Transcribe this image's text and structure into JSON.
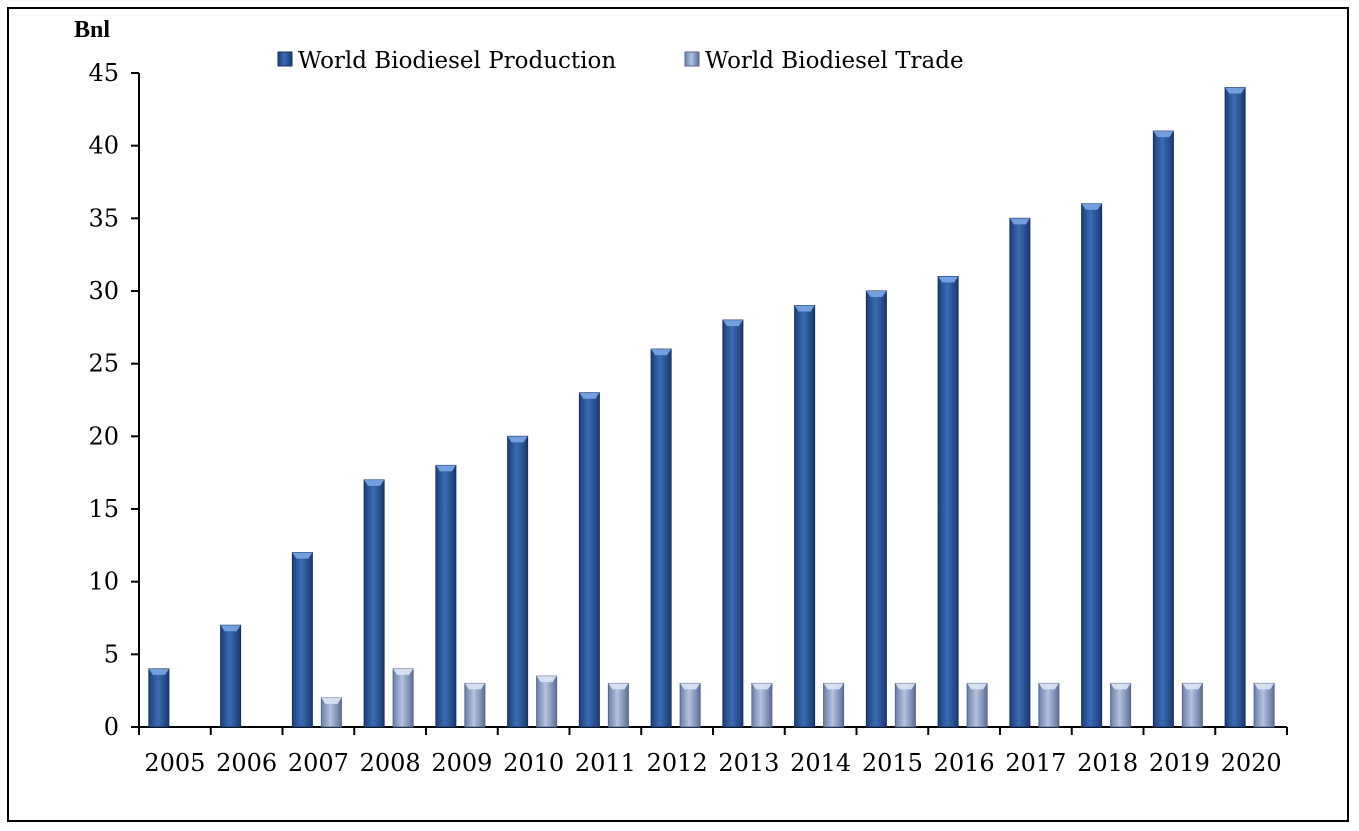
{
  "chart_data": {
    "type": "bar",
    "title": "",
    "xlabel": "",
    "ylabel": "Bnl",
    "ylim": [
      0,
      45
    ],
    "yticks": [
      0,
      5,
      10,
      15,
      20,
      25,
      30,
      35,
      40,
      45
    ],
    "categories": [
      "2005",
      "2006",
      "2007",
      "2008",
      "2009",
      "2010",
      "2011",
      "2012",
      "2013",
      "2014",
      "2015",
      "2016",
      "2017",
      "2018",
      "2019",
      "2020"
    ],
    "series": [
      {
        "name": "World Biodiesel Production",
        "color": "#2f5b9e",
        "values": [
          4,
          7,
          12,
          17,
          18,
          20,
          23,
          26,
          28,
          29,
          30,
          31,
          35,
          36,
          41,
          44
        ]
      },
      {
        "name": "World Biodiesel Trade",
        "color": "#8da2c8",
        "values": [
          0,
          0,
          2,
          4,
          3,
          3.5,
          3,
          3,
          3,
          3,
          3,
          3,
          3,
          3,
          3,
          3
        ]
      }
    ],
    "legend": "top",
    "grid": false
  }
}
